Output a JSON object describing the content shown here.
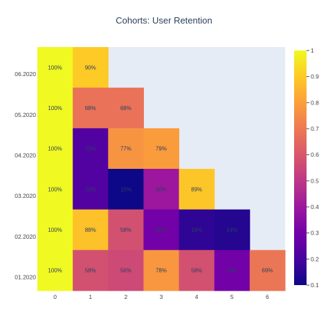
{
  "chart_data": {
    "type": "heatmap",
    "title": "Cohorts: User Retention",
    "x_categories": [
      "0",
      "1",
      "2",
      "3",
      "4",
      "5",
      "6"
    ],
    "y_categories": [
      "01.2020",
      "02.2020",
      "03.2020",
      "04.2020",
      "05.2020",
      "06.2020"
    ],
    "rows": [
      {
        "cohort": "06.2020",
        "values": [
          1.0,
          0.9,
          null,
          null,
          null,
          null,
          null
        ],
        "labels": [
          "100%",
          "90%",
          "",
          "",
          "",
          "",
          ""
        ]
      },
      {
        "cohort": "05.2020",
        "values": [
          1.0,
          0.68,
          0.68,
          null,
          null,
          null,
          null
        ],
        "labels": [
          "100%",
          "68%",
          "68%",
          "",
          "",
          "",
          ""
        ]
      },
      {
        "cohort": "04.2020",
        "values": [
          1.0,
          0.23,
          0.77,
          0.79,
          null,
          null,
          null
        ],
        "labels": [
          "100%",
          "23%",
          "77%",
          "79%",
          "",
          "",
          ""
        ]
      },
      {
        "cohort": "03.2020",
        "values": [
          1.0,
          0.23,
          0.1,
          0.4,
          0.89,
          null,
          null
        ],
        "labels": [
          "100%",
          "23%",
          "10%",
          "40%",
          "89%",
          "",
          ""
        ]
      },
      {
        "cohort": "02.2020",
        "values": [
          1.0,
          0.88,
          0.58,
          0.3,
          0.16,
          0.14,
          null
        ],
        "labels": [
          "100%",
          "88%",
          "58%",
          "30%",
          "16%",
          "14%",
          ""
        ]
      },
      {
        "cohort": "01.2020",
        "values": [
          1.0,
          0.58,
          0.56,
          0.78,
          0.58,
          0.3,
          0.69
        ],
        "labels": [
          "100%",
          "58%",
          "56%",
          "78%",
          "58%",
          "30%",
          "69%"
        ]
      }
    ],
    "colorscale": {
      "name": "plasma",
      "min": 0.1,
      "max": 1.0,
      "ticks": [
        "0.1",
        "0.2",
        "0.3",
        "0.4",
        "0.5",
        "0.6",
        "0.7",
        "0.8",
        "0.9",
        "1"
      ],
      "stops": [
        "#0d0887",
        "#46039f",
        "#7201a8",
        "#9c179e",
        "#bd3786",
        "#d8576b",
        "#ed7953",
        "#fb9f3a",
        "#fdca26",
        "#f0f921"
      ]
    },
    "empty_cell_color": "#e5ecf6",
    "legend": "colorbar-right"
  }
}
